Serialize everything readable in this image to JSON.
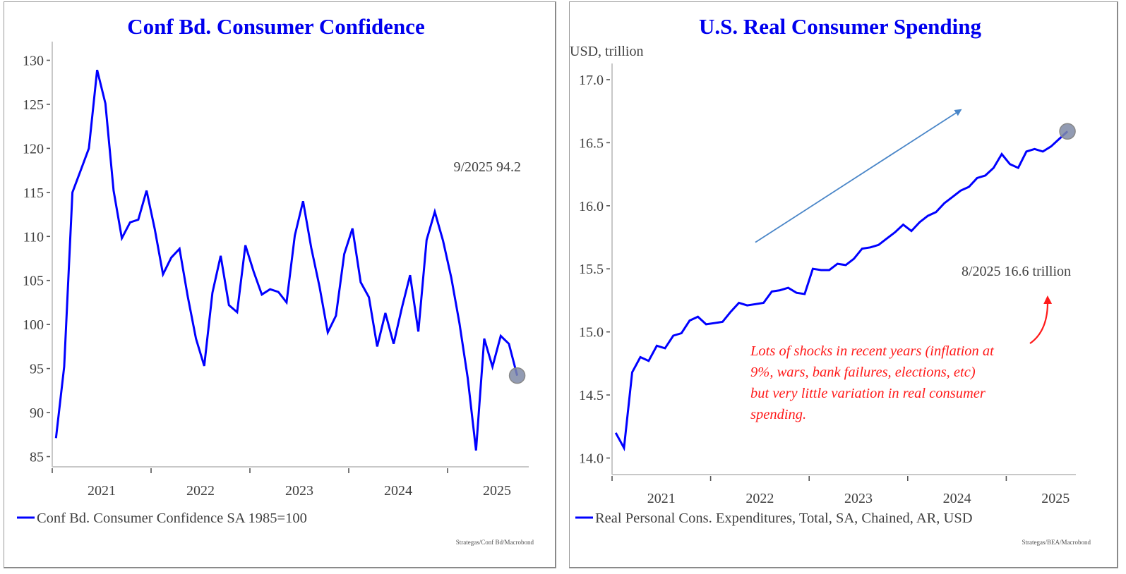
{
  "chart_data": [
    {
      "type": "line",
      "title": "Conf Bd. Consumer Confidence",
      "xlabel": "",
      "ylabel": "",
      "x_ticks": [
        "2021",
        "2022",
        "2023",
        "2024",
        "2025"
      ],
      "ylim": [
        84,
        131
      ],
      "y_ticks": [
        85,
        90,
        95,
        100,
        105,
        110,
        115,
        120,
        125,
        130
      ],
      "y_tick_labels": [
        "85",
        "90",
        "95",
        "100",
        "105",
        "110",
        "115",
        "120",
        "125",
        "130"
      ],
      "grid": false,
      "legend_position": "bottom-left",
      "start": "2021-01",
      "frequency": "monthly",
      "series": [
        {
          "name": "Conf Bd. Consumer Confidence SA 1985=100",
          "color": "#0000ff",
          "values": [
            87.1,
            95.2,
            115.0,
            117.5,
            120.0,
            128.9,
            125.1,
            115.2,
            109.8,
            111.6,
            111.9,
            115.2,
            110.8,
            105.7,
            107.6,
            108.6,
            103.2,
            98.4,
            95.3,
            103.6,
            107.8,
            102.2,
            101.4,
            109.0,
            106.0,
            103.4,
            104.0,
            103.7,
            102.5,
            110.1,
            114.0,
            108.7,
            104.3,
            99.1,
            101.0,
            108.0,
            110.9,
            104.8,
            103.1,
            97.5,
            101.3,
            97.8,
            101.9,
            105.6,
            99.2,
            109.6,
            112.8,
            109.5,
            105.3,
            100.1,
            93.9,
            85.7,
            98.4,
            95.2,
            98.7,
            97.8,
            94.2
          ]
        }
      ],
      "annotations": [
        {
          "text": "9/2025 94.2",
          "target": "last-point"
        }
      ],
      "highlight_point": {
        "date": "2025-09",
        "value": 94.2,
        "color": "#7f8aa6"
      },
      "source": "Strategas/Conf Bd/Macrobond"
    },
    {
      "type": "line",
      "title": "U.S. Real Consumer Spending",
      "xlabel": "",
      "ylabel": "USD, trillion",
      "x_ticks": [
        "2021",
        "2022",
        "2023",
        "2024",
        "2025"
      ],
      "ylim": [
        13.88,
        17.05
      ],
      "y_ticks": [
        14.0,
        14.5,
        15.0,
        15.5,
        16.0,
        16.5,
        17.0
      ],
      "y_tick_labels": [
        "14.0",
        "14.5",
        "15.0",
        "15.5",
        "16.0",
        "16.5",
        "17.0"
      ],
      "grid": false,
      "legend_position": "bottom-left",
      "start": "2021-01",
      "frequency": "monthly",
      "series": [
        {
          "name": "Real Personal Cons. Expenditures, Total, SA, Chained, AR, USD",
          "color": "#0000ff",
          "values": [
            14.2,
            14.08,
            14.68,
            14.8,
            14.77,
            14.89,
            14.87,
            14.97,
            14.99,
            15.09,
            15.12,
            15.06,
            15.07,
            15.08,
            15.16,
            15.23,
            15.21,
            15.22,
            15.23,
            15.32,
            15.33,
            15.35,
            15.31,
            15.3,
            15.5,
            15.49,
            15.49,
            15.54,
            15.53,
            15.58,
            15.66,
            15.67,
            15.69,
            15.74,
            15.79,
            15.85,
            15.8,
            15.87,
            15.92,
            15.95,
            16.02,
            16.07,
            16.12,
            16.15,
            16.22,
            16.24,
            16.3,
            16.41,
            16.33,
            16.3,
            16.43,
            16.45,
            16.43,
            16.47,
            16.53,
            16.59
          ]
        }
      ],
      "annotations": [
        {
          "text": "8/2025 16.6 trillion",
          "target": "last-point"
        },
        {
          "text": "Lots of shocks in recent years (inflation at 9%, wars, bank failures, elections, etc) but very little variation in real consumer spending.",
          "color": "#ff1a1a",
          "style": "italic"
        }
      ],
      "trend_arrow": {
        "from": {
          "date": "2022-06",
          "value": 15.71
        },
        "to": {
          "date": "2024-07",
          "value": 16.76
        },
        "color": "#4a86c8"
      },
      "highlight_point": {
        "date": "2025-08",
        "value": 16.59,
        "color": "#7f8aa6"
      },
      "source": "Strategas/BEA/Macrobond"
    }
  ],
  "left": {
    "title": "Conf Bd. Consumer Confidence",
    "annotation": "9/2025 94.2",
    "legend": "Conf Bd. Consumer Confidence SA 1985=100",
    "source": "Strategas/Conf Bd/Macrobond"
  },
  "right": {
    "title": "U.S. Real Consumer Spending",
    "unit_label": "USD, trillion",
    "annotation": "8/2025 16.6 trillion",
    "note_lines": [
      "Lots of shocks in recent years (inflation at",
      "9%, wars, bank failures, elections, etc)",
      "but very little variation in real consumer",
      "spending."
    ],
    "legend": "Real Personal Cons. Expenditures, Total, SA, Chained, AR, USD",
    "source": "Strategas/BEA/Macrobond"
  }
}
